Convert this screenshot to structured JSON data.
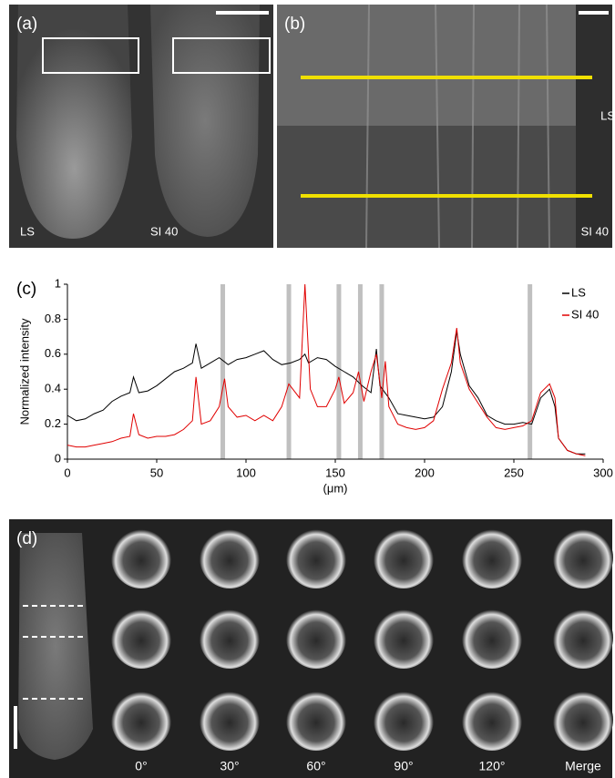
{
  "panels": {
    "a": {
      "label": "(a)",
      "left_label": "LS",
      "right_label": "SI 40"
    },
    "b": {
      "label": "(b)",
      "top_label": "LS",
      "bottom_label": "SI 40"
    },
    "c": {
      "label": "(c)"
    },
    "d": {
      "label": "(d)",
      "columns": [
        "0°",
        "30°",
        "60°",
        "90°",
        "120°",
        "Merge"
      ]
    }
  },
  "chart_data": {
    "type": "line",
    "xlabel": "(μm)",
    "ylabel": "Normalized intensity",
    "xlim": [
      0,
      300
    ],
    "ylim": [
      0,
      1
    ],
    "xticks": [
      0,
      50,
      100,
      150,
      200,
      250,
      300
    ],
    "yticks": [
      0,
      0.2,
      0.4,
      0.6,
      0.8,
      1
    ],
    "legend": "upper right",
    "highlights": [
      87,
      124,
      152,
      164,
      176,
      259
    ],
    "highlight_color": "#c0c0c0",
    "series": [
      {
        "name": "LS",
        "color": "#000000",
        "x": [
          0,
          5,
          10,
          15,
          20,
          25,
          30,
          35,
          37,
          40,
          45,
          50,
          55,
          60,
          65,
          70,
          72,
          75,
          80,
          85,
          90,
          95,
          100,
          105,
          110,
          115,
          120,
          125,
          130,
          133,
          135,
          140,
          145,
          150,
          155,
          160,
          165,
          170,
          173,
          175,
          180,
          185,
          190,
          195,
          200,
          205,
          210,
          215,
          218,
          220,
          225,
          230,
          235,
          240,
          245,
          250,
          255,
          260,
          265,
          270,
          273,
          275,
          280,
          285,
          290
        ],
        "values": [
          0.25,
          0.22,
          0.23,
          0.26,
          0.28,
          0.33,
          0.36,
          0.38,
          0.47,
          0.38,
          0.39,
          0.42,
          0.46,
          0.5,
          0.52,
          0.55,
          0.66,
          0.52,
          0.55,
          0.58,
          0.54,
          0.57,
          0.58,
          0.6,
          0.62,
          0.57,
          0.54,
          0.55,
          0.57,
          0.6,
          0.55,
          0.58,
          0.57,
          0.53,
          0.5,
          0.47,
          0.42,
          0.38,
          0.63,
          0.42,
          0.35,
          0.26,
          0.25,
          0.24,
          0.23,
          0.24,
          0.3,
          0.5,
          0.73,
          0.6,
          0.42,
          0.35,
          0.25,
          0.22,
          0.2,
          0.2,
          0.21,
          0.2,
          0.35,
          0.4,
          0.3,
          0.12,
          0.05,
          0.03,
          0.03
        ]
      },
      {
        "name": "SI 40",
        "color": "#e00000",
        "x": [
          0,
          5,
          10,
          15,
          20,
          25,
          30,
          35,
          37,
          40,
          45,
          50,
          55,
          60,
          65,
          70,
          72,
          75,
          80,
          85,
          88,
          90,
          95,
          100,
          105,
          110,
          115,
          120,
          124,
          130,
          133,
          136,
          140,
          145,
          150,
          152,
          155,
          160,
          163,
          166,
          170,
          173,
          176,
          178,
          180,
          185,
          190,
          195,
          200,
          205,
          210,
          215,
          218,
          220,
          225,
          230,
          235,
          240,
          245,
          250,
          255,
          260,
          265,
          270,
          273,
          275,
          280,
          285,
          290
        ],
        "values": [
          0.08,
          0.07,
          0.07,
          0.08,
          0.09,
          0.1,
          0.12,
          0.13,
          0.26,
          0.14,
          0.12,
          0.13,
          0.13,
          0.14,
          0.17,
          0.22,
          0.47,
          0.2,
          0.22,
          0.3,
          0.46,
          0.3,
          0.24,
          0.25,
          0.22,
          0.25,
          0.22,
          0.3,
          0.43,
          0.35,
          1,
          0.4,
          0.3,
          0.3,
          0.4,
          0.47,
          0.32,
          0.38,
          0.5,
          0.33,
          0.5,
          0.6,
          0.35,
          0.56,
          0.3,
          0.2,
          0.18,
          0.17,
          0.18,
          0.22,
          0.4,
          0.55,
          0.75,
          0.55,
          0.4,
          0.32,
          0.24,
          0.18,
          0.17,
          0.18,
          0.19,
          0.22,
          0.38,
          0.43,
          0.35,
          0.12,
          0.05,
          0.03,
          0.02
        ]
      }
    ]
  }
}
